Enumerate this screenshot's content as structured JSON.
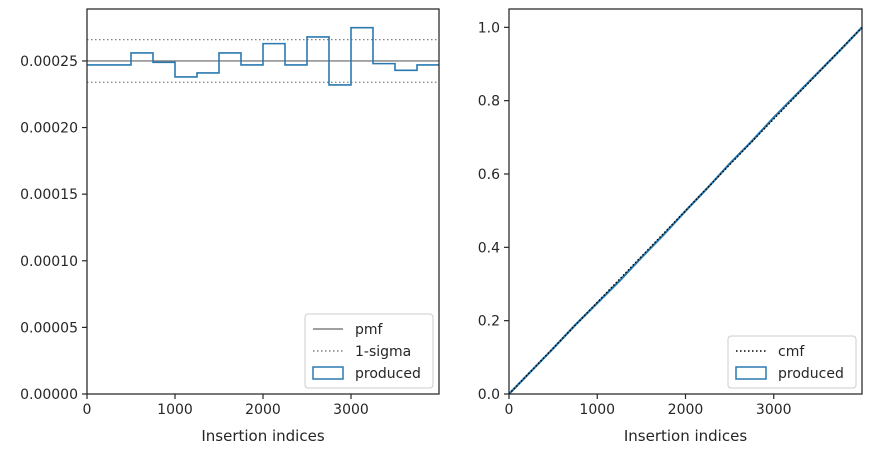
{
  "colors": {
    "produced": "#2a7ab0",
    "pmf": "#808080",
    "sigma": "#808080",
    "cmf": "#000000",
    "axis": "#262626"
  },
  "chart_data": [
    {
      "type": "step",
      "xlabel": "Insertion indices",
      "ylabel": "",
      "xlim": [
        0,
        4000
      ],
      "ylim": [
        0,
        0.000289
      ],
      "xticks": [
        {
          "value": 0,
          "label": "0"
        },
        {
          "value": 1000,
          "label": "1000"
        },
        {
          "value": 2000,
          "label": "2000"
        },
        {
          "value": 3000,
          "label": "3000"
        }
      ],
      "yticks": [
        {
          "value": 0,
          "label": "0.00000"
        },
        {
          "value": 5e-05,
          "label": "0.00005"
        },
        {
          "value": 0.0001,
          "label": "0.00010"
        },
        {
          "value": 0.00015,
          "label": "0.00015"
        },
        {
          "value": 0.0002,
          "label": "0.00020"
        },
        {
          "value": 0.00025,
          "label": "0.00025"
        }
      ],
      "pmf": 0.00025,
      "sigma": [
        0.000234,
        0.000266
      ],
      "bin_width": 250,
      "bin_starts": [
        0,
        250,
        500,
        750,
        1000,
        1250,
        1500,
        1750,
        2000,
        2250,
        2500,
        2750,
        3000,
        3250,
        3500,
        3750
      ],
      "produced": [
        0.000247,
        0.000247,
        0.000256,
        0.000249,
        0.000238,
        0.000241,
        0.000256,
        0.000247,
        0.000263,
        0.000247,
        0.000268,
        0.000232,
        0.000275,
        0.000248,
        0.000243,
        0.000247
      ],
      "legend_position": "lower-right",
      "legend": [
        {
          "key": "pmf",
          "label": "pmf",
          "style": "solid-line"
        },
        {
          "key": "sigma",
          "label": "1-sigma",
          "style": "dotted-line"
        },
        {
          "key": "produced",
          "label": "produced",
          "style": "box"
        }
      ]
    },
    {
      "type": "line",
      "xlabel": "Insertion indices",
      "ylabel": "",
      "xlim": [
        0,
        4000
      ],
      "ylim": [
        0,
        1.05
      ],
      "xticks": [
        {
          "value": 0,
          "label": "0"
        },
        {
          "value": 1000,
          "label": "1000"
        },
        {
          "value": 2000,
          "label": "2000"
        },
        {
          "value": 3000,
          "label": "3000"
        }
      ],
      "yticks": [
        {
          "value": 0,
          "label": "0.0"
        },
        {
          "value": 0.2,
          "label": "0.2"
        },
        {
          "value": 0.4,
          "label": "0.4"
        },
        {
          "value": 0.6,
          "label": "0.6"
        },
        {
          "value": 0.8,
          "label": "0.8"
        },
        {
          "value": 1.0,
          "label": "1.0"
        }
      ],
      "cmf": {
        "x": [
          0,
          4000
        ],
        "y": [
          0,
          1.0
        ]
      },
      "produced": {
        "x": [
          0,
          250,
          500,
          750,
          1000,
          1250,
          1500,
          1750,
          2000,
          2250,
          2500,
          2750,
          3000,
          3250,
          3500,
          3750,
          4000
        ],
        "y": [
          0,
          0.062,
          0.124,
          0.188,
          0.248,
          0.308,
          0.372,
          0.434,
          0.499,
          0.562,
          0.628,
          0.689,
          0.754,
          0.815,
          0.876,
          0.937,
          1.0
        ]
      },
      "legend_position": "lower-right",
      "legend": [
        {
          "key": "cmf",
          "label": "cmf",
          "style": "dotted-line"
        },
        {
          "key": "produced",
          "label": "produced",
          "style": "box"
        }
      ]
    }
  ]
}
